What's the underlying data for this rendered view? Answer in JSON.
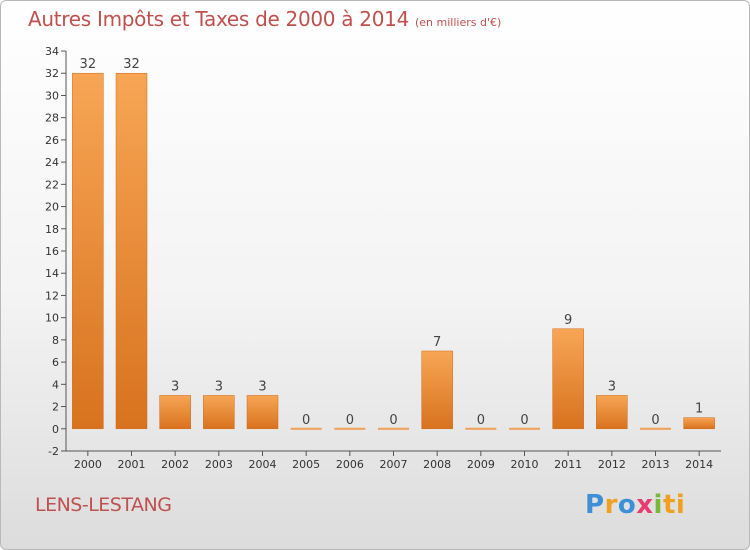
{
  "chart_data": {
    "type": "bar",
    "title": "Autres Impôts et Taxes de 2000 à 2014",
    "unit": "(en milliers d'€)",
    "categories": [
      "2000",
      "2001",
      "2002",
      "2003",
      "2004",
      "2005",
      "2006",
      "2007",
      "2008",
      "2009",
      "2010",
      "2011",
      "2012",
      "2013",
      "2014"
    ],
    "values": [
      32,
      32,
      3,
      3,
      3,
      0,
      0,
      0,
      7,
      0,
      0,
      9,
      3,
      0,
      1
    ],
    "ylim": [
      -2,
      34
    ],
    "yticks": [
      -2,
      0,
      2,
      4,
      6,
      8,
      10,
      12,
      14,
      16,
      18,
      20,
      22,
      24,
      26,
      28,
      30,
      32,
      34
    ],
    "grid": false,
    "bar_color": "#f0922e"
  },
  "commune": "LENS-LESTANG",
  "brand": {
    "letters": [
      "P",
      "r",
      "o",
      "x",
      "i",
      "ti"
    ]
  }
}
